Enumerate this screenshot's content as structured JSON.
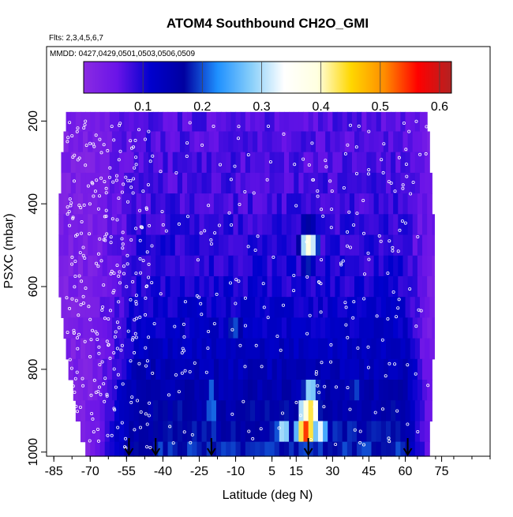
{
  "chart_data": {
    "type": "heatmap",
    "title": "ATOM4 Southbound CH2O_GMI",
    "notes": [
      "Flts: 2,3,4,5,6,7",
      "MMDD: 0427,0429,0501,0503,0506,0509"
    ],
    "xlabel": "Latitude (deg N)",
    "ylabel": "PSXC (mbar)",
    "xlim": [
      -88,
      95
    ],
    "ylim": [
      1010,
      20
    ],
    "x_ticks": [
      -85,
      -70,
      -55,
      -40,
      -25,
      -10,
      5,
      15,
      30,
      45,
      60,
      75
    ],
    "x_tick_labels": [
      "-85",
      "-70",
      "-55",
      "-40",
      "-25",
      "-10",
      "5",
      "15",
      "30",
      "45",
      "60",
      "75"
    ],
    "y_ticks": [
      200,
      400,
      600,
      800,
      1000
    ],
    "y_tick_labels": [
      "200",
      "400",
      "600",
      "800",
      "1000"
    ],
    "colorbar": {
      "ticks": [
        0.1,
        0.2,
        0.3,
        0.4,
        0.5,
        0.6
      ],
      "tick_labels": [
        "0.1",
        "0.2",
        "0.3",
        "0.4",
        "0.5",
        "0.6"
      ],
      "range": [
        0.0,
        0.62
      ],
      "colors": [
        "#8a2be2",
        "#6a14e8",
        "#0000cd",
        "#0000a0",
        "#1e90ff",
        "#87cefa",
        "#ffffff",
        "#ffffe0",
        "#ffd700",
        "#ff8c00",
        "#ff0000",
        "#b22222"
      ]
    },
    "cell_lat_step": 2,
    "pressure_levels": [
      200,
      250,
      300,
      350,
      400,
      450,
      500,
      550,
      600,
      650,
      700,
      750,
      800,
      850,
      900,
      950,
      1000
    ],
    "coverage": [
      {
        "p": 200,
        "lat_min": -80,
        "lat_max": 69
      },
      {
        "p": 250,
        "lat_min": -81,
        "lat_max": 70
      },
      {
        "p": 300,
        "lat_min": -82,
        "lat_max": 70
      },
      {
        "p": 350,
        "lat_min": -82,
        "lat_max": 71
      },
      {
        "p": 400,
        "lat_min": -83,
        "lat_max": 71
      },
      {
        "p": 450,
        "lat_min": -83,
        "lat_max": 72
      },
      {
        "p": 500,
        "lat_min": -83,
        "lat_max": 72
      },
      {
        "p": 550,
        "lat_min": -83,
        "lat_max": 72
      },
      {
        "p": 600,
        "lat_min": -83,
        "lat_max": 72
      },
      {
        "p": 650,
        "lat_min": -82,
        "lat_max": 72
      },
      {
        "p": 700,
        "lat_min": -81,
        "lat_max": 72
      },
      {
        "p": 750,
        "lat_min": -80,
        "lat_max": 72
      },
      {
        "p": 800,
        "lat_min": -79,
        "lat_max": 71
      },
      {
        "p": 850,
        "lat_min": -77,
        "lat_max": 71
      },
      {
        "p": 900,
        "lat_min": -76,
        "lat_max": 71
      },
      {
        "p": 950,
        "lat_min": -74,
        "lat_max": 70
      },
      {
        "p": 1000,
        "lat_min": -72,
        "lat_max": 70
      }
    ],
    "field": {
      "background": [
        {
          "p": 200,
          "value": 0.07
        },
        {
          "p": 400,
          "value": 0.08
        },
        {
          "p": 600,
          "value": 0.1
        },
        {
          "p": 800,
          "value": 0.14
        },
        {
          "p": 1000,
          "value": 0.18
        }
      ],
      "polar_south_lat": -50,
      "polar_south_value": 0.03,
      "polar_north_lat": 60,
      "polar_north_value": 0.04,
      "features": [
        {
          "lat": 19,
          "p": 935,
          "value": 0.58
        },
        {
          "lat": 21,
          "p": 885,
          "value": 0.45
        },
        {
          "lat": 20,
          "p": 500,
          "value": 0.38
        },
        {
          "lat": 25,
          "p": 940,
          "value": 0.32
        },
        {
          "lat": -20,
          "p": 880,
          "value": 0.26
        },
        {
          "lat": -10,
          "p": 700,
          "value": 0.21
        },
        {
          "lat": 10,
          "p": 960,
          "value": 0.3
        },
        {
          "lat": 40,
          "p": 870,
          "value": 0.22
        }
      ]
    },
    "arrow_latitudes": [
      -54,
      -43,
      -20,
      20,
      61
    ]
  }
}
